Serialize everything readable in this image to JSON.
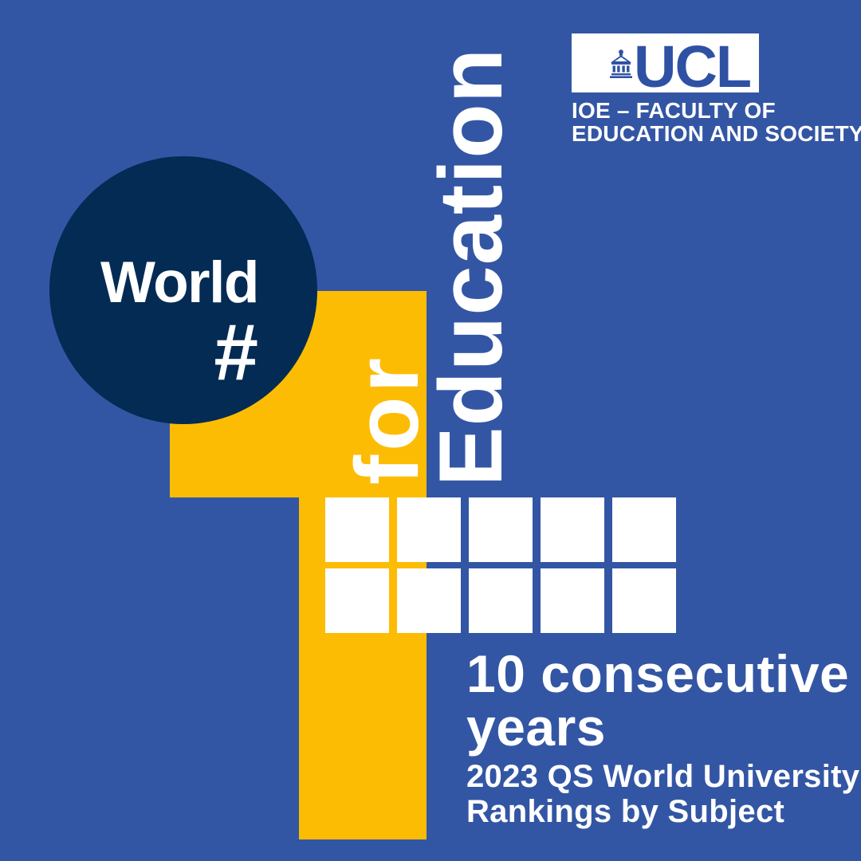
{
  "colors": {
    "background": "#3356a4",
    "navy": "#032b53",
    "yellow": "#fdbc04",
    "white": "#ffffff",
    "logo_blue": "#2e51a3"
  },
  "logo": {
    "letters": "UCL",
    "icon": "ucl-portico-icon",
    "caption_line1": "IOE – FACULTY OF",
    "caption_line2": "EDUCATION AND SOCIETY"
  },
  "badge": {
    "world": "World",
    "hash": "#"
  },
  "numeral": {
    "value": "1",
    "for_label": "for",
    "subject_label": "Education"
  },
  "grid": {
    "rows": 2,
    "cols": 5,
    "total": 10
  },
  "headline": {
    "line1": "10 consecutive",
    "line2": "years"
  },
  "subheadline": {
    "line1": "2023 QS World University",
    "line2": "Rankings by Subject"
  }
}
